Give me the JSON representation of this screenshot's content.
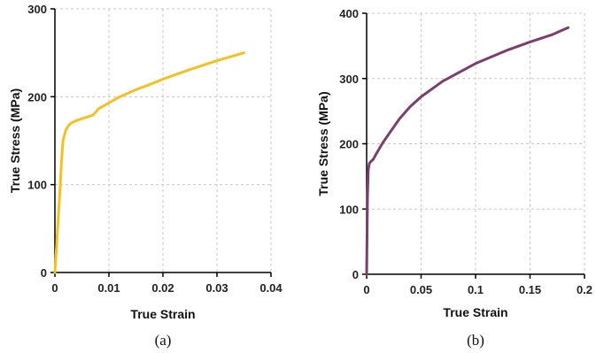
{
  "chart_data": [
    {
      "type": "line",
      "panel_label": "(a)",
      "xlabel": "True Strain",
      "ylabel": "True Stress (MPa)",
      "xlim": [
        0,
        0.04
      ],
      "ylim": [
        0,
        300
      ],
      "xticks": [
        0,
        0.01,
        0.02,
        0.03,
        0.04
      ],
      "xtick_labels": [
        "0",
        "0.01",
        "0.02",
        "0.03",
        "0.04"
      ],
      "yticks": [
        0,
        100,
        200,
        300
      ],
      "ytick_labels": [
        "0",
        "100",
        "200",
        "300"
      ],
      "grid": true,
      "series": [
        {
          "color": "#F5C021",
          "x": [
            0,
            0.0005,
            0.001,
            0.0012,
            0.0015,
            0.002,
            0.0025,
            0.003,
            0.004,
            0.005,
            0.006,
            0.007,
            0.0075,
            0.008,
            0.01,
            0.012,
            0.015,
            0.018,
            0.02,
            0.025,
            0.03,
            0.035
          ],
          "y": [
            0,
            50,
            100,
            125,
            150,
            162,
            167,
            170,
            173,
            175,
            177,
            179,
            182,
            186,
            193,
            200,
            208,
            215,
            220,
            231,
            241,
            250
          ]
        }
      ]
    },
    {
      "type": "line",
      "panel_label": "(b)",
      "xlabel": "True Strain",
      "ylabel": "True Stress (MPa)",
      "xlim": [
        0,
        0.2
      ],
      "ylim": [
        0,
        400
      ],
      "xticks": [
        0,
        0.05,
        0.1,
        0.15,
        0.2
      ],
      "xtick_labels": [
        "0",
        "0.05",
        "0.1",
        "0.15",
        "0.2"
      ],
      "yticks": [
        0,
        100,
        200,
        300,
        400
      ],
      "ytick_labels": [
        "0",
        "100",
        "200",
        "300",
        "400"
      ],
      "grid": true,
      "series": [
        {
          "color": "#7B3F6E",
          "x": [
            0,
            0.0008,
            0.0015,
            0.0025,
            0.004,
            0.006,
            0.008,
            0.01,
            0.015,
            0.02,
            0.03,
            0.04,
            0.05,
            0.07,
            0.1,
            0.13,
            0.15,
            0.17,
            0.185
          ],
          "y": [
            0,
            120,
            160,
            170,
            173,
            176,
            182,
            188,
            202,
            214,
            238,
            257,
            272,
            296,
            323,
            344,
            356,
            367,
            378
          ]
        }
      ]
    }
  ]
}
